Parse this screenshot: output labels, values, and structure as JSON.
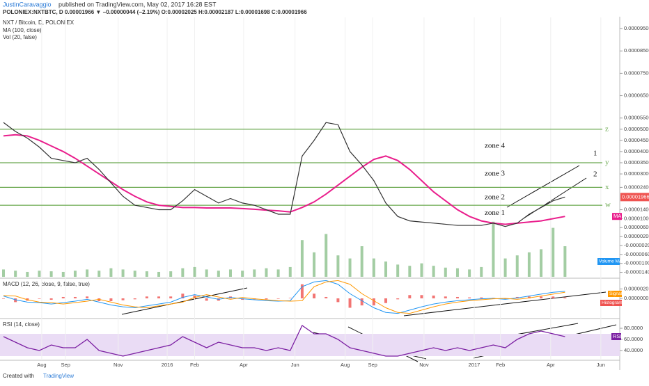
{
  "header": {
    "author": "JustinCaravaggio",
    "published": "published on TradingView.com, May 02, 2017 16:28 EST",
    "symbol_line": "POLONIEX:NXTBTC, D  0.00001966 ▼ −0.00000044 (−2.19%) O:0.00002025 H:0.00002187 L:0.00001698 C:0.00001966"
  },
  "footer": {
    "created": "Created with",
    "brand": "TradingView"
  },
  "chart_data": {
    "type": "line",
    "title": "NXT / Bitcoin, D, POLONIEX",
    "xlim": [
      0,
      51
    ],
    "xticks": [
      {
        "value": 3.2,
        "label": "Aug"
      },
      {
        "value": 5.2,
        "label": "Sep"
      },
      {
        "value": 9.6,
        "label": "Nov"
      },
      {
        "value": 13.7,
        "label": "2016"
      },
      {
        "value": 16,
        "label": "Feb"
      },
      {
        "value": 20.1,
        "label": "Apr"
      },
      {
        "value": 24.4,
        "label": "Jun"
      },
      {
        "value": 28.6,
        "label": "Aug"
      },
      {
        "value": 30.9,
        "label": "Sep"
      },
      {
        "value": 35.2,
        "label": "Nov"
      },
      {
        "value": 39.4,
        "label": "2017"
      },
      {
        "value": 41.6,
        "label": "Feb"
      },
      {
        "value": 45.8,
        "label": "Apr"
      },
      {
        "value": 50,
        "label": "Jun"
      }
    ],
    "ylim": [
      -1.6e-05,
      0.0001
    ],
    "yticks": [
      {
        "value": 9.5e-05,
        "label": "0.00009500"
      },
      {
        "value": 8.5e-05,
        "label": "0.00008500"
      },
      {
        "value": 7.5e-05,
        "label": "0.00007500"
      },
      {
        "value": 6.5e-05,
        "label": "0.00006500"
      },
      {
        "value": 5.5e-05,
        "label": "0.00005500"
      },
      {
        "value": 5e-05,
        "label": "0.00005000"
      },
      {
        "value": 4.5e-05,
        "label": "0.00004500"
      },
      {
        "value": 4e-05,
        "label": "0.00004000"
      },
      {
        "value": 3.5e-05,
        "label": "0.00003500"
      },
      {
        "value": 3e-05,
        "label": "0.00003000"
      },
      {
        "value": 2.4e-05,
        "label": "0.00002400"
      },
      {
        "value": 1.4e-05,
        "label": "0.00001400"
      },
      {
        "value": 1e-05,
        "label": "0.00001000"
      },
      {
        "value": 6e-06,
        "label": "0.00000600"
      },
      {
        "value": 2e-06,
        "label": "0.00000200"
      },
      {
        "value": -2e-06,
        "label": "-0.00000200"
      },
      {
        "value": -6e-06,
        "label": "-0.00000600"
      },
      {
        "value": -1e-05,
        "label": "-0.00001000"
      },
      {
        "value": -1.4e-05,
        "label": "-0.00001400"
      }
    ],
    "last_price": {
      "value": 1.966e-05,
      "label": "0.00001966"
    },
    "price": {
      "color": "#333333",
      "values": [
        5.3e-05,
        4.9e-05,
        4.6e-05,
        4.2e-05,
        3.7e-05,
        3.6e-05,
        3.5e-05,
        3.7e-05,
        3.2e-05,
        2.6e-05,
        2e-05,
        1.6e-05,
        1.5e-05,
        1.4e-05,
        1.4e-05,
        1.8e-05,
        2.3e-05,
        2e-05,
        1.7e-05,
        1.9e-05,
        1.7e-05,
        1.6e-05,
        1.4e-05,
        1.2e-05,
        1.2e-05,
        3.8e-05,
        4.5e-05,
        5.3e-05,
        5.2e-05,
        4e-05,
        3.4e-05,
        2.7e-05,
        1.7e-05,
        1.1e-05,
        9e-06,
        8.5e-06,
        8e-06,
        7.5e-06,
        7e-06,
        7e-06,
        7e-06,
        8e-06,
        6.5e-06,
        8e-06,
        1.2e-05,
        1.5e-05,
        1.8e-05,
        1.966e-05
      ]
    },
    "ma": {
      "name": "MA (100, close)",
      "tag": "MA",
      "color": "#e91e8c",
      "values": [
        4.7e-05,
        4.75e-05,
        4.7e-05,
        4.5e-05,
        4.25e-05,
        4e-05,
        3.7e-05,
        3.35e-05,
        3e-05,
        2.65e-05,
        2.3e-05,
        2e-05,
        1.75e-05,
        1.6e-05,
        1.55e-05,
        1.5e-05,
        1.5e-05,
        1.48e-05,
        1.48e-05,
        1.48e-05,
        1.45e-05,
        1.42e-05,
        1.38e-05,
        1.35e-05,
        1.3e-05,
        1.5e-05,
        1.75e-05,
        2.1e-05,
        2.5e-05,
        2.9e-05,
        3.3e-05,
        3.65e-05,
        3.8e-05,
        3.6e-05,
        3.2e-05,
        2.7e-05,
        2.2e-05,
        1.8e-05,
        1.4e-05,
        1.1e-05,
        9e-06,
        8e-06,
        7.5e-06,
        8e-06,
        8.5e-06,
        9e-06,
        1e-05,
        1.1e-05
      ]
    },
    "volume": {
      "name": "Vol (20, false)",
      "tag": "Volume MA",
      "color": "#7cb87c",
      "ylim": [
        0,
        100
      ],
      "values": [
        12,
        10,
        8,
        10,
        9,
        8,
        10,
        12,
        10,
        14,
        12,
        10,
        9,
        8,
        9,
        14,
        16,
        12,
        10,
        12,
        10,
        12,
        14,
        12,
        16,
        60,
        40,
        70,
        35,
        30,
        50,
        30,
        25,
        20,
        18,
        22,
        18,
        15,
        14,
        12,
        16,
        90,
        30,
        35,
        40,
        45,
        80,
        50
      ]
    },
    "levels": [
      {
        "value": 5e-05,
        "label": "z"
      },
      {
        "value": 3.5e-05,
        "label": "y"
      },
      {
        "value": 2.4e-05,
        "label": "x"
      },
      {
        "value": 1.6e-05,
        "label": "w"
      }
    ],
    "level_color": "#6aa84f",
    "zones": [
      {
        "value": 4.25e-05,
        "label": "zone 4"
      },
      {
        "value": 3e-05,
        "label": "zone 3"
      },
      {
        "value": 1.95e-05,
        "label": "zone 2"
      },
      {
        "value": 1.25e-05,
        "label": "zone 1"
      }
    ],
    "annotations": [
      "1",
      "2"
    ],
    "macd": {
      "name": "MACD (12, 26, close, 9, false, true)",
      "ylim": [
        -4e-06,
        4e-06
      ],
      "yticks": [
        {
          "value": 2e-06,
          "label": "0.0000020"
        },
        {
          "value": 0,
          "label": "0.0000000"
        }
      ],
      "macd": {
        "color": "#2196f3",
        "values": [
          5e-07,
          -3e-07,
          -8e-07,
          -9e-07,
          -1.2e-06,
          -9e-07,
          -6e-07,
          -2e-07,
          -8e-07,
          -1.4e-06,
          -1.8e-06,
          -2e-06,
          -1.6e-06,
          -1.2e-06,
          -8e-07,
          2e-07,
          8e-07,
          3e-07,
          -2e-07,
          2e-07,
          -1e-07,
          -3e-07,
          -5e-07,
          -6e-07,
          -5e-07,
          2.5e-06,
          3.5e-06,
          3.8e-06,
          3e-06,
          1e-06,
          -5e-07,
          -2e-06,
          -3e-06,
          -3.2e-06,
          -2.5e-06,
          -1.8e-06,
          -1.2e-06,
          -8e-07,
          -5e-07,
          -3e-07,
          -1e-07,
          0,
          -2e-07,
          1e-07,
          5e-07,
          9e-07,
          1.3e-06,
          1.5e-06
        ]
      },
      "signal": {
        "name": "Signal",
        "color": "#ff9800",
        "values": [
          6e-07,
          5e-07,
          -3e-07,
          -8e-07,
          -9e-07,
          -1.2e-06,
          -9e-07,
          -6e-07,
          -2e-07,
          -8e-07,
          -1.4e-06,
          -1.8e-06,
          -2e-06,
          -1.6e-06,
          -1.2e-06,
          -8e-07,
          2e-07,
          8e-07,
          3e-07,
          -2e-07,
          2e-07,
          -1e-07,
          -3e-07,
          -5e-07,
          -6e-07,
          -5e-07,
          2.5e-06,
          3.5e-06,
          3.8e-06,
          3e-06,
          1e-06,
          -5e-07,
          -2e-06,
          -3e-06,
          -3.2e-06,
          -2.5e-06,
          -1.8e-06,
          -1.2e-06,
          -8e-07,
          -5e-07,
          -3e-07,
          -1e-07,
          0,
          -2e-07,
          1e-07,
          5e-07,
          9e-07,
          1.3e-06
        ]
      },
      "histogram": {
        "name": "Histogram",
        "color": "#ef5350",
        "values": [
          -1e-07,
          -8e-07,
          -5e-07,
          -1e-07,
          -3e-07,
          3e-07,
          3e-07,
          4e-07,
          -6e-07,
          -6e-07,
          -4e-07,
          -2e-07,
          4e-07,
          4e-07,
          4e-07,
          1e-06,
          6e-07,
          -5e-07,
          -5e-07,
          4e-07,
          -3e-07,
          -2e-07,
          -2e-07,
          -1e-07,
          1e-07,
          3e-06,
          1e-06,
          3e-07,
          -8e-07,
          -2e-06,
          -1.5e-06,
          -1.5e-06,
          -1e-06,
          -2e-07,
          7e-07,
          7e-07,
          6e-07,
          4e-07,
          3e-07,
          2e-07,
          2e-07,
          1e-07,
          -2e-07,
          3e-07,
          4e-07,
          4e-07,
          4e-07,
          2e-07
        ]
      }
    },
    "rsi": {
      "name": "RSI (14, close)",
      "tag": "RSI",
      "color": "#7b1fa2",
      "band_color": "#eadcf5",
      "ylim": [
        25,
        95
      ],
      "band": [
        30,
        70
      ],
      "yticks": [
        {
          "value": 80,
          "label": "80.0000"
        },
        {
          "value": 60,
          "label": "60.0000"
        },
        {
          "value": 40,
          "label": "40.0000"
        }
      ],
      "values": [
        65,
        55,
        45,
        40,
        50,
        45,
        45,
        60,
        40,
        35,
        30,
        35,
        40,
        45,
        50,
        65,
        55,
        45,
        55,
        50,
        45,
        45,
        40,
        45,
        40,
        85,
        70,
        70,
        60,
        45,
        40,
        35,
        30,
        30,
        35,
        40,
        45,
        40,
        45,
        40,
        45,
        50,
        45,
        60,
        70,
        75,
        70,
        65
      ]
    }
  }
}
